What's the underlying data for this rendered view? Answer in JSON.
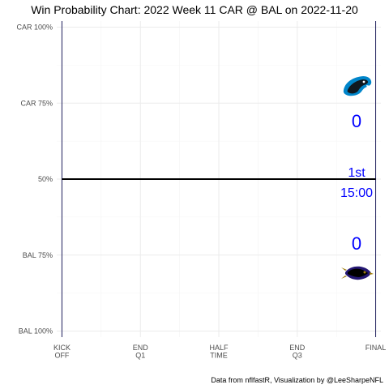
{
  "chart_data": {
    "type": "line",
    "title": "Win Probability Chart: 2022 Week 11 CAR @ BAL on 2022-11-20",
    "caption": "Data from nflfastR, Visualization by @LeeSharpeNFL",
    "y_ticks": [
      {
        "value": 100,
        "label": "CAR 100%"
      },
      {
        "value": 75,
        "label": "CAR 75%"
      },
      {
        "value": 50,
        "label": "50%"
      },
      {
        "value": 25,
        "label": "BAL 75%"
      },
      {
        "value": 0,
        "label": "BAL 100%"
      }
    ],
    "x_ticks": [
      {
        "value": 0,
        "label": [
          "KICK",
          "OFF"
        ]
      },
      {
        "value": 900,
        "label": [
          "END",
          "Q1"
        ]
      },
      {
        "value": 1800,
        "label": [
          "HALF",
          "TIME"
        ]
      },
      {
        "value": 2700,
        "label": [
          "END",
          "Q3"
        ]
      },
      {
        "value": 3600,
        "label": [
          "FINAL"
        ]
      }
    ],
    "xlim": [
      -60,
      3660
    ],
    "ylim": [
      -2,
      102
    ],
    "minor_x": [
      450,
      1350,
      2250,
      3150
    ],
    "minor_y": [
      87.5,
      62.5,
      37.5,
      12.5
    ],
    "boundary_lines": [
      0,
      3600
    ],
    "series": [
      {
        "points": [
          [
            0,
            50
          ],
          [
            3600,
            50
          ]
        ]
      }
    ],
    "grid": true,
    "home_score": "0",
    "away_score": "0",
    "quarter": "1st",
    "clock": "15:00",
    "away_team_logo": "panthers-logo",
    "home_team_logo": "ravens-logo",
    "colors": {
      "line": "#000000",
      "grid": "#ebebeb",
      "boundary": "#1f1f5c",
      "score_text": "#0000ff",
      "axis_text": "#4d4d4d"
    }
  }
}
